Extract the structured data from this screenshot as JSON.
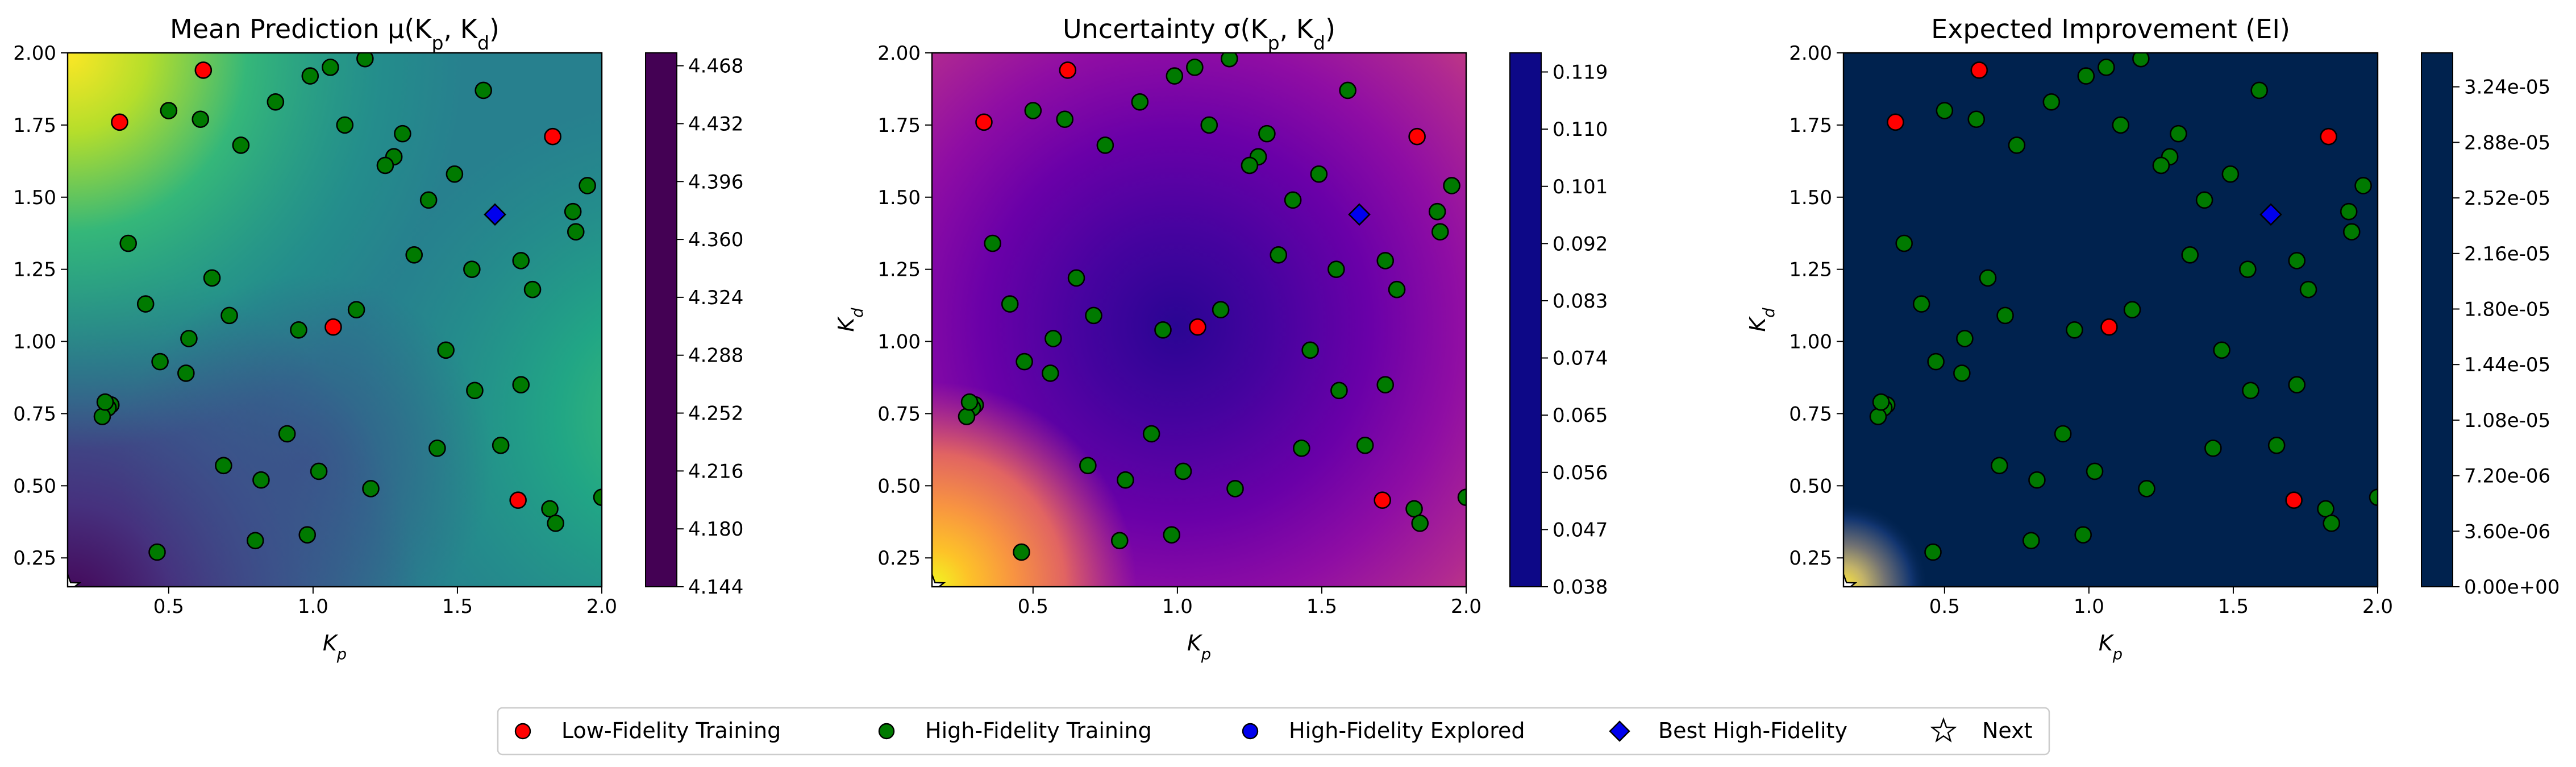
{
  "chart_data": [
    {
      "type": "heatmap",
      "title": "Mean Prediction μ(K_p, K_d)",
      "xlabel": "K_p",
      "ylabel": "K_d",
      "xlim": [
        0.15,
        2.0
      ],
      "ylim": [
        0.15,
        2.0
      ],
      "xticks": [
        "0.5",
        "1.0",
        "1.5",
        "2.0"
      ],
      "yticks": [
        "0.25",
        "0.50",
        "0.75",
        "1.00",
        "1.25",
        "1.50",
        "1.75",
        "2.00"
      ],
      "colormap": "viridis",
      "colorbar_range": [
        4.144,
        4.476
      ],
      "colorbar_ticks": [
        "4.144",
        "4.180",
        "4.216",
        "4.252",
        "4.288",
        "4.324",
        "4.360",
        "4.396",
        "4.432",
        "4.468"
      ]
    },
    {
      "type": "heatmap",
      "title": "Uncertainty σ(K_p, K_d)",
      "xlabel": "K_p",
      "ylabel": "K_d",
      "xlim": [
        0.15,
        2.0
      ],
      "ylim": [
        0.15,
        2.0
      ],
      "xticks": [
        "0.5",
        "1.0",
        "1.5",
        "2.0"
      ],
      "yticks": [
        "0.25",
        "0.50",
        "0.75",
        "1.00",
        "1.25",
        "1.50",
        "1.75",
        "2.00"
      ],
      "colormap": "plasma",
      "colorbar_range": [
        0.038,
        0.122
      ],
      "colorbar_ticks": [
        "0.038",
        "0.047",
        "0.056",
        "0.065",
        "0.074",
        "0.083",
        "0.092",
        "0.101",
        "0.110",
        "0.119"
      ]
    },
    {
      "type": "heatmap",
      "title": "Expected Improvement (EI)",
      "xlabel": "K_p",
      "ylabel": "K_d",
      "xlim": [
        0.15,
        2.0
      ],
      "ylim": [
        0.15,
        2.0
      ],
      "xticks": [
        "0.5",
        "1.0",
        "1.5",
        "2.0"
      ],
      "yticks": [
        "0.25",
        "0.50",
        "0.75",
        "1.00",
        "1.25",
        "1.50",
        "1.75",
        "2.00"
      ],
      "colormap": "cividis",
      "colorbar_range": [
        0.0,
        3.46e-05
      ],
      "colorbar_ticks": [
        "0.00e+00",
        "3.60e-06",
        "7.20e-06",
        "1.08e-05",
        "1.44e-05",
        "1.80e-05",
        "2.16e-05",
        "2.52e-05",
        "2.88e-05",
        "3.24e-05"
      ]
    }
  ],
  "points": {
    "low_fidelity": [
      [
        0.33,
        1.76
      ],
      [
        0.62,
        1.94
      ],
      [
        1.07,
        1.05
      ],
      [
        1.71,
        0.45
      ],
      [
        1.83,
        1.71
      ]
    ],
    "high_fidelity": [
      [
        0.5,
        1.8
      ],
      [
        0.61,
        1.77
      ],
      [
        0.75,
        1.68
      ],
      [
        0.87,
        1.83
      ],
      [
        0.99,
        1.92
      ],
      [
        1.06,
        1.95
      ],
      [
        1.18,
        1.98
      ],
      [
        1.11,
        1.75
      ],
      [
        1.31,
        1.72
      ],
      [
        1.28,
        1.64
      ],
      [
        1.25,
        1.61
      ],
      [
        1.59,
        1.87
      ],
      [
        1.49,
        1.58
      ],
      [
        1.4,
        1.49
      ],
      [
        1.95,
        1.54
      ],
      [
        1.9,
        1.45
      ],
      [
        1.91,
        1.38
      ],
      [
        0.36,
        1.34
      ],
      [
        0.65,
        1.22
      ],
      [
        0.71,
        1.09
      ],
      [
        0.42,
        1.13
      ],
      [
        0.95,
        1.04
      ],
      [
        1.15,
        1.11
      ],
      [
        1.35,
        1.3
      ],
      [
        1.55,
        1.25
      ],
      [
        1.72,
        1.28
      ],
      [
        1.76,
        1.18
      ],
      [
        0.57,
        1.01
      ],
      [
        0.47,
        0.93
      ],
      [
        0.56,
        0.89
      ],
      [
        0.3,
        0.78
      ],
      [
        0.29,
        0.77
      ],
      [
        0.27,
        0.74
      ],
      [
        0.28,
        0.79
      ],
      [
        1.46,
        0.97
      ],
      [
        1.56,
        0.83
      ],
      [
        1.72,
        0.85
      ],
      [
        0.91,
        0.68
      ],
      [
        1.43,
        0.63
      ],
      [
        1.65,
        0.64
      ],
      [
        0.69,
        0.57
      ],
      [
        0.82,
        0.52
      ],
      [
        1.02,
        0.55
      ],
      [
        1.2,
        0.49
      ],
      [
        1.82,
        0.42
      ],
      [
        1.84,
        0.37
      ],
      [
        2.0,
        0.46
      ],
      [
        0.46,
        0.27
      ],
      [
        0.8,
        0.31
      ],
      [
        0.98,
        0.33
      ]
    ],
    "best_high_fidelity": [
      [
        1.63,
        1.44
      ]
    ],
    "next": [
      [
        0.15,
        0.15
      ]
    ]
  },
  "marker_colors": {
    "low_fidelity": "#ff0000",
    "high_fidelity": "#007a00",
    "explored": "#0000ee",
    "best": "#0000ee"
  },
  "legend": {
    "items": [
      {
        "label": "Low-Fidelity Training",
        "marker": "circle",
        "color": "#ff0000"
      },
      {
        "label": "High-Fidelity Training",
        "marker": "circle",
        "color": "#007a00"
      },
      {
        "label": "High-Fidelity Explored",
        "marker": "circle",
        "color": "#0000ee"
      },
      {
        "label": "Best High-Fidelity",
        "marker": "diamond",
        "color": "#0000ee"
      },
      {
        "label": "Next",
        "marker": "star",
        "color": "#ffffff"
      }
    ]
  }
}
